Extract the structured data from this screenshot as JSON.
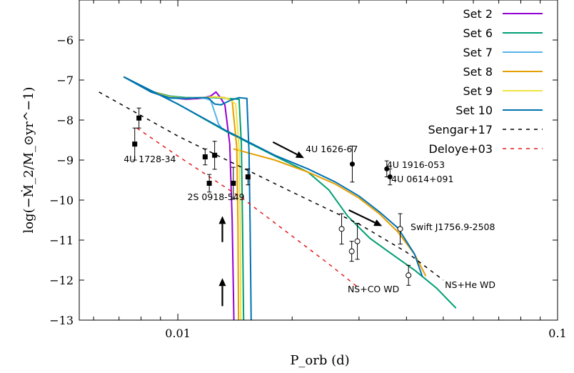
{
  "chart_data": {
    "type": "line",
    "xlabel": "P_orb (d)",
    "ylabel": "log(−Ṁ_2/M_⊙yr^−1)",
    "xscale": "log",
    "xlim": [
      0.0055,
      0.1
    ],
    "ylim": [
      -13,
      -5
    ],
    "x_ticks": [
      {
        "value": 0.01,
        "label": "0.01"
      },
      {
        "value": 0.1,
        "label": "0.1"
      }
    ],
    "y_ticks": [
      {
        "value": -6,
        "label": "−6"
      },
      {
        "value": -7,
        "label": "−7"
      },
      {
        "value": -8,
        "label": "−8"
      },
      {
        "value": -9,
        "label": "−9"
      },
      {
        "value": -10,
        "label": "−10"
      },
      {
        "value": -11,
        "label": "−11"
      },
      {
        "value": -12,
        "label": "−12"
      },
      {
        "value": -13,
        "label": "−13"
      }
    ],
    "grid": false,
    "legend_position": "top-right",
    "series": [
      {
        "name": "Set 2",
        "color": "#9400d3",
        "style": "solid",
        "points": [
          [
            0.0072,
            -6.92
          ],
          [
            0.0085,
            -7.28
          ],
          [
            0.0095,
            -7.44
          ],
          [
            0.0105,
            -7.48
          ],
          [
            0.0115,
            -7.46
          ],
          [
            0.0122,
            -7.4
          ],
          [
            0.0126,
            -7.3
          ],
          [
            0.0129,
            -7.42
          ],
          [
            0.0133,
            -7.62
          ],
          [
            0.0137,
            -8.6
          ],
          [
            0.0139,
            -10.5
          ],
          [
            0.01405,
            -13.0
          ]
        ]
      },
      {
        "name": "Set 6",
        "color": "#009e73",
        "style": "solid",
        "points": [
          [
            0.0072,
            -6.92
          ],
          [
            0.0085,
            -7.28
          ],
          [
            0.0095,
            -7.4
          ],
          [
            0.0105,
            -7.44
          ],
          [
            0.0115,
            -7.44
          ],
          [
            0.0125,
            -7.44
          ],
          [
            0.0135,
            -7.46
          ],
          [
            0.0145,
            -7.48
          ],
          [
            0.0147,
            -8.6
          ],
          [
            0.0148,
            -10.6
          ],
          [
            0.0149,
            -13.0
          ]
        ],
        "tail": [
          [
            0.0072,
            -6.92
          ],
          [
            0.01,
            -7.6
          ],
          [
            0.0135,
            -8.3
          ],
          [
            0.018,
            -8.9
          ],
          [
            0.022,
            -9.3
          ],
          [
            0.025,
            -9.75
          ],
          [
            0.028,
            -10.4
          ],
          [
            0.032,
            -10.95
          ],
          [
            0.036,
            -11.3
          ],
          [
            0.042,
            -11.75
          ],
          [
            0.048,
            -12.2
          ],
          [
            0.054,
            -12.7
          ]
        ]
      },
      {
        "name": "Set 7",
        "color": "#56b4e9",
        "style": "solid",
        "points": [
          [
            0.0072,
            -6.92
          ],
          [
            0.0085,
            -7.3
          ],
          [
            0.0095,
            -7.46
          ],
          [
            0.0105,
            -7.46
          ],
          [
            0.011,
            -7.44
          ],
          [
            0.0118,
            -7.46
          ],
          [
            0.0122,
            -7.5
          ],
          [
            0.0126,
            -7.9
          ],
          [
            0.0128,
            -8.1
          ],
          [
            0.013,
            -8.18
          ]
        ]
      },
      {
        "name": "Set 8",
        "color": "#e69f00",
        "style": "solid",
        "points": [
          [
            0.0072,
            -6.92
          ],
          [
            0.0085,
            -7.28
          ],
          [
            0.0095,
            -7.42
          ],
          [
            0.0105,
            -7.46
          ],
          [
            0.0115,
            -7.44
          ],
          [
            0.0125,
            -7.42
          ],
          [
            0.0133,
            -7.44
          ],
          [
            0.0139,
            -7.52
          ],
          [
            0.0143,
            -8.7
          ],
          [
            0.0144,
            -10.6
          ],
          [
            0.01445,
            -13.0
          ]
        ],
        "tail": [
          [
            0.014,
            -8.72
          ],
          [
            0.018,
            -9.0
          ],
          [
            0.022,
            -9.3
          ],
          [
            0.026,
            -9.6
          ],
          [
            0.03,
            -9.95
          ],
          [
            0.034,
            -10.35
          ],
          [
            0.038,
            -10.8
          ],
          [
            0.042,
            -11.35
          ],
          [
            0.045,
            -11.9
          ]
        ]
      },
      {
        "name": "Set 9",
        "color": "#f0e442",
        "style": "solid",
        "points": [
          [
            0.0072,
            -6.92
          ],
          [
            0.0085,
            -7.3
          ],
          [
            0.0095,
            -7.42
          ],
          [
            0.0105,
            -7.46
          ],
          [
            0.0115,
            -7.44
          ],
          [
            0.0125,
            -7.42
          ],
          [
            0.0136,
            -7.46
          ],
          [
            0.0142,
            -7.6
          ],
          [
            0.0145,
            -8.7
          ],
          [
            0.0146,
            -10.6
          ],
          [
            0.01465,
            -13.0
          ]
        ]
      },
      {
        "name": "Set 10",
        "color": "#0072b2",
        "style": "solid",
        "points": [
          [
            0.0072,
            -6.92
          ],
          [
            0.0085,
            -7.3
          ],
          [
            0.0095,
            -7.44
          ],
          [
            0.0105,
            -7.46
          ],
          [
            0.0115,
            -7.44
          ],
          [
            0.012,
            -7.44
          ],
          [
            0.0125,
            -7.6
          ],
          [
            0.013,
            -7.62
          ],
          [
            0.0138,
            -7.5
          ],
          [
            0.0145,
            -7.44
          ],
          [
            0.0152,
            -7.46
          ],
          [
            0.0154,
            -8.8
          ],
          [
            0.0155,
            -10.6
          ],
          [
            0.0156,
            -13.0
          ]
        ],
        "tail": [
          [
            0.0072,
            -6.92
          ],
          [
            0.01,
            -7.6
          ],
          [
            0.0135,
            -8.28
          ],
          [
            0.018,
            -8.88
          ],
          [
            0.022,
            -9.22
          ],
          [
            0.026,
            -9.55
          ],
          [
            0.03,
            -9.9
          ],
          [
            0.034,
            -10.3
          ],
          [
            0.038,
            -10.7
          ],
          [
            0.042,
            -11.35
          ],
          [
            0.044,
            -11.9
          ]
        ]
      },
      {
        "name": "Sengar+17",
        "color": "#000000",
        "style": "dashed",
        "points": [
          [
            0.0062,
            -7.3
          ],
          [
            0.01,
            -8.4
          ],
          [
            0.02,
            -9.8
          ],
          [
            0.03,
            -10.6
          ],
          [
            0.04,
            -11.3
          ],
          [
            0.05,
            -12.0
          ]
        ]
      },
      {
        "name": "Deloye+03",
        "color": "#e31a1c",
        "style": "dashed",
        "points": [
          [
            0.0078,
            -8.2
          ],
          [
            0.01,
            -8.9
          ],
          [
            0.015,
            -10.0
          ],
          [
            0.02,
            -10.9
          ],
          [
            0.025,
            -11.6
          ],
          [
            0.03,
            -12.2
          ]
        ]
      }
    ],
    "observations": [
      {
        "x": 0.0077,
        "y": -8.6,
        "err": 0.4,
        "marker": "square"
      },
      {
        "x": 0.0079,
        "y": -7.95,
        "err": 0.25,
        "marker": "square"
      },
      {
        "x": 0.0118,
        "y": -8.92,
        "err": 0.2,
        "marker": "square"
      },
      {
        "x": 0.0121,
        "y": -9.58,
        "err": 0.22,
        "marker": "square"
      },
      {
        "x": 0.0125,
        "y": -8.88,
        "err": 0.35,
        "marker": "square"
      },
      {
        "x": 0.014,
        "y": -9.58,
        "err": 0.4,
        "marker": "square"
      },
      {
        "x": 0.0153,
        "y": -9.42,
        "err": 0.2,
        "marker": "square"
      },
      {
        "x": 0.0288,
        "y": -9.1,
        "err": 0.45,
        "marker": "circle-filled"
      },
      {
        "x": 0.0355,
        "y": -9.22,
        "err": 0.2,
        "marker": "circle-filled"
      },
      {
        "x": 0.0362,
        "y": -9.42,
        "err": 0.2,
        "marker": "circle-filled"
      },
      {
        "x": 0.027,
        "y": -10.72,
        "err": 0.38,
        "marker": "circle-open"
      },
      {
        "x": 0.0287,
        "y": -11.28,
        "err": 0.25,
        "marker": "circle-open"
      },
      {
        "x": 0.0297,
        "y": -11.03,
        "err": 0.45,
        "marker": "circle-open"
      },
      {
        "x": 0.0385,
        "y": -10.72,
        "err": 0.38,
        "marker": "circle-open"
      },
      {
        "x": 0.0405,
        "y": -11.88,
        "err": 0.25,
        "marker": "circle-open"
      }
    ],
    "annotations": [
      {
        "text": "4U 1728-34",
        "x": 0.0072,
        "y": -9.05
      },
      {
        "text": "2S 0918-549",
        "x": 0.0106,
        "y": -10.0
      },
      {
        "text": "4U 1626-67",
        "x": 0.0217,
        "y": -8.8
      },
      {
        "text": "4U 1916-053",
        "x": 0.0355,
        "y": -9.2
      },
      {
        "text": "4U 0614+091",
        "x": 0.0365,
        "y": -9.55
      },
      {
        "text": "Swift J1756.9-2508",
        "x": 0.041,
        "y": -10.75
      },
      {
        "text": "NS+CO WD",
        "x": 0.028,
        "y": -12.3
      },
      {
        "text": "NS+He WD",
        "x": 0.0505,
        "y": -12.2
      }
    ],
    "arrows": [
      {
        "from": [
          0.0178,
          -8.55
        ],
        "to": [
          0.0215,
          -8.95
        ]
      },
      {
        "from": [
          0.0282,
          -10.25
        ],
        "to": [
          0.0345,
          -10.65
        ]
      },
      {
        "from": [
          0.0131,
          -11.05
        ],
        "to": [
          0.0131,
          -10.4
        ]
      },
      {
        "from": [
          0.0131,
          -12.65
        ],
        "to": [
          0.0131,
          -11.95
        ]
      }
    ]
  }
}
